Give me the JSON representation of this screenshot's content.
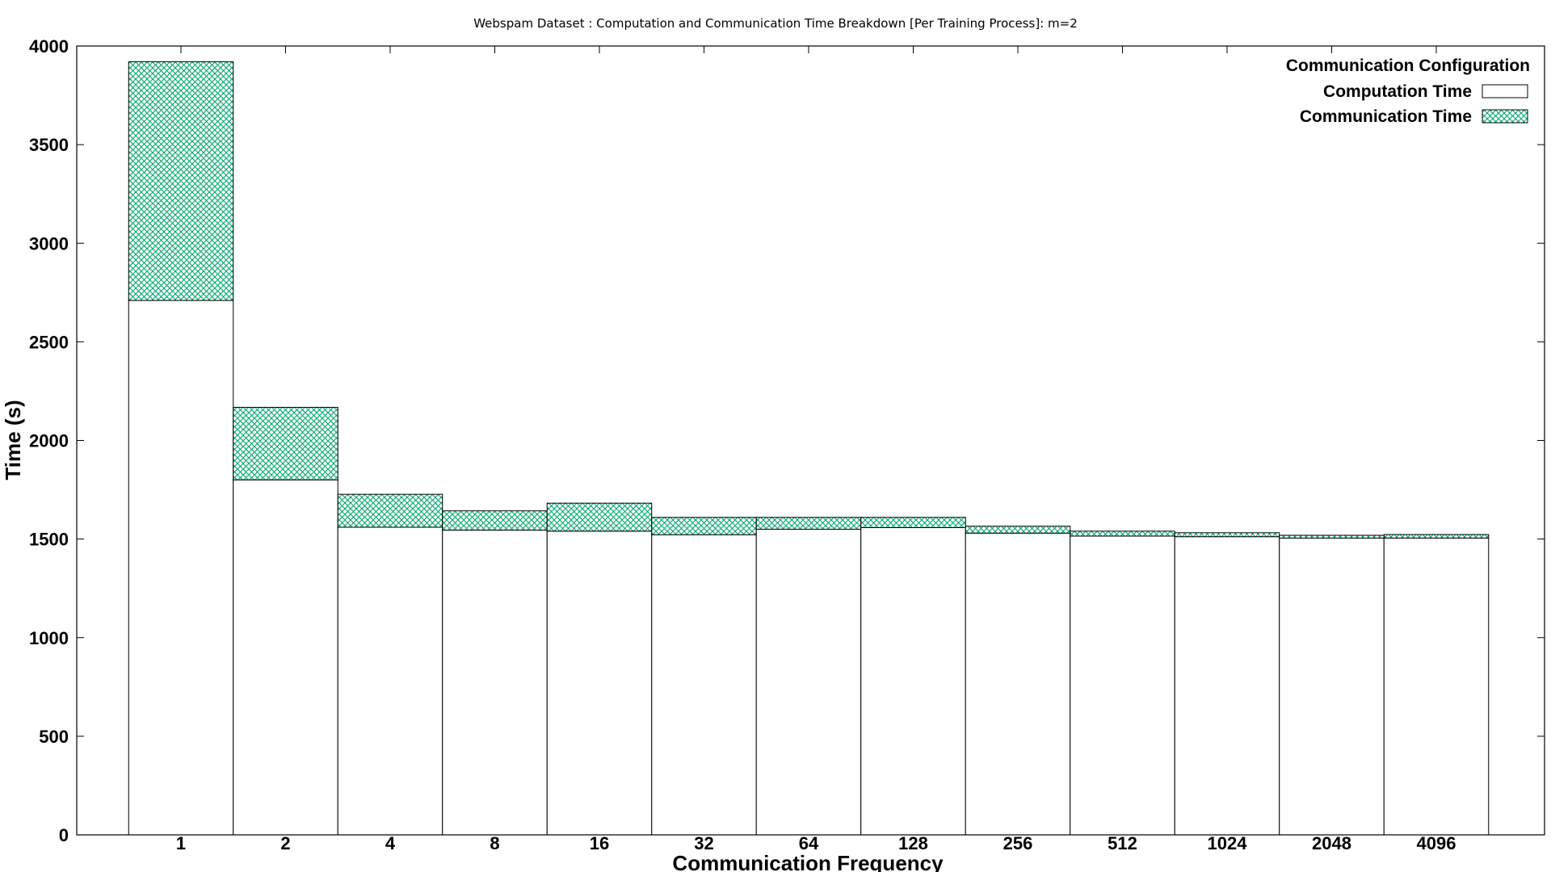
{
  "chart_data": {
    "type": "bar",
    "stacked": true,
    "title": "Webspam Dataset : Computation and Communication Time Breakdown [Per Training Process]: m=2",
    "xlabel": "Communication Frequency",
    "ylabel": "Time (s)",
    "ylim": [
      0,
      4000
    ],
    "yticks": [
      "0",
      "500",
      "1000",
      "1500",
      "2000",
      "2500",
      "3000",
      "3500",
      "4000"
    ],
    "grid": false,
    "legend_title": "Communication Configuration",
    "legend_position": "top-right",
    "categories": [
      "1",
      "2",
      "4",
      "8",
      "16",
      "32",
      "64",
      "128",
      "256",
      "512",
      "1024",
      "2048",
      "4096"
    ],
    "series": [
      {
        "name": "Computation Time",
        "fill": "#ffffff",
        "pattern": "none",
        "values": [
          2710,
          1800,
          1560,
          1545,
          1540,
          1522,
          1550,
          1558,
          1530,
          1515,
          1512,
          1505,
          1505
        ]
      },
      {
        "name": "Communication Time",
        "fill": "#00a86b",
        "pattern": "crosshatch",
        "values": [
          1210,
          368,
          167,
          98,
          142,
          88,
          60,
          52,
          35,
          25,
          20,
          14,
          18
        ]
      }
    ]
  }
}
